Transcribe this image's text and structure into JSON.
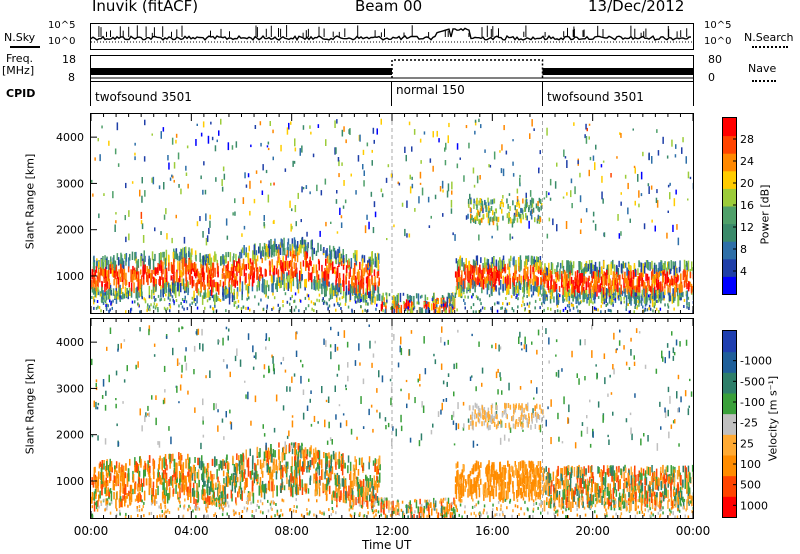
{
  "header": {
    "station": "Inuvik (fitACF)",
    "beam": "Beam 00",
    "date": "13/Dec/2012"
  },
  "strip_labels": {
    "nsky": "N.Sky",
    "nsearch": "N.Search",
    "freq": "Freq.",
    "freq_unit": "[MHz]",
    "nave": "Nave",
    "cpid": "CPID",
    "nsky_ticks": [
      "10^5",
      "10^0"
    ],
    "nsearch_ticks": [
      "10^5",
      "10^0"
    ],
    "freq_ticks": [
      "18",
      "8"
    ],
    "nave_ticks": [
      "80",
      "0"
    ]
  },
  "cpid_segments": [
    {
      "label": "twofsound 3501",
      "start_h": 0,
      "end_h": 12
    },
    {
      "label": "normal 150",
      "start_h": 12,
      "end_h": 18
    },
    {
      "label": "twofsound 3501",
      "start_h": 18,
      "end_h": 24
    }
  ],
  "chart_data": [
    {
      "type": "heatmap",
      "name": "power-panel",
      "ylabel": "Slant Range [km]",
      "ylim": [
        200,
        4500
      ],
      "yticks": [
        "4000",
        "3000",
        "2000",
        "1000"
      ],
      "ytick_values": [
        4000,
        3000,
        2000,
        1000
      ],
      "colorbar_label": "Power [dB]",
      "colorbar_ticks": [
        "28",
        "24",
        "20",
        "16",
        "12",
        "8",
        "4"
      ],
      "colorbar_range": [
        0,
        32
      ],
      "colorbar_colors": [
        "#0000ff",
        "#1f3fa8",
        "#2e6fa8",
        "#3a8a6a",
        "#4fa06a",
        "#9ccc3a",
        "#ffcc00",
        "#ff8800",
        "#ff4400",
        "#ff0000"
      ]
    },
    {
      "type": "heatmap",
      "name": "velocity-panel",
      "ylabel": "Slant Range [km]",
      "ylim": [
        200,
        4500
      ],
      "yticks": [
        "4000",
        "3000",
        "2000",
        "1000"
      ],
      "ytick_values": [
        4000,
        3000,
        2000,
        1000
      ],
      "colorbar_label": "Velocity [m s⁻¹]",
      "colorbar_ticks": [
        "1000",
        "500",
        "100",
        "25",
        "-25",
        "-100",
        "-500",
        "-1000"
      ],
      "colorbar_colors": [
        "#ff0000",
        "#ff4400",
        "#ff8c00",
        "#ffaa33",
        "#c0c0c0",
        "#3aa03a",
        "#2e7f6a",
        "#1f5f9a",
        "#1f3fb0"
      ]
    }
  ],
  "time_axis": {
    "label": "Time UT",
    "ticks": [
      "00:00",
      "04:00",
      "08:00",
      "12:00",
      "16:00",
      "20:00",
      "00:00"
    ],
    "tick_hours": [
      0,
      4,
      8,
      12,
      16,
      20,
      24
    ],
    "xlim": [
      0,
      24
    ]
  }
}
